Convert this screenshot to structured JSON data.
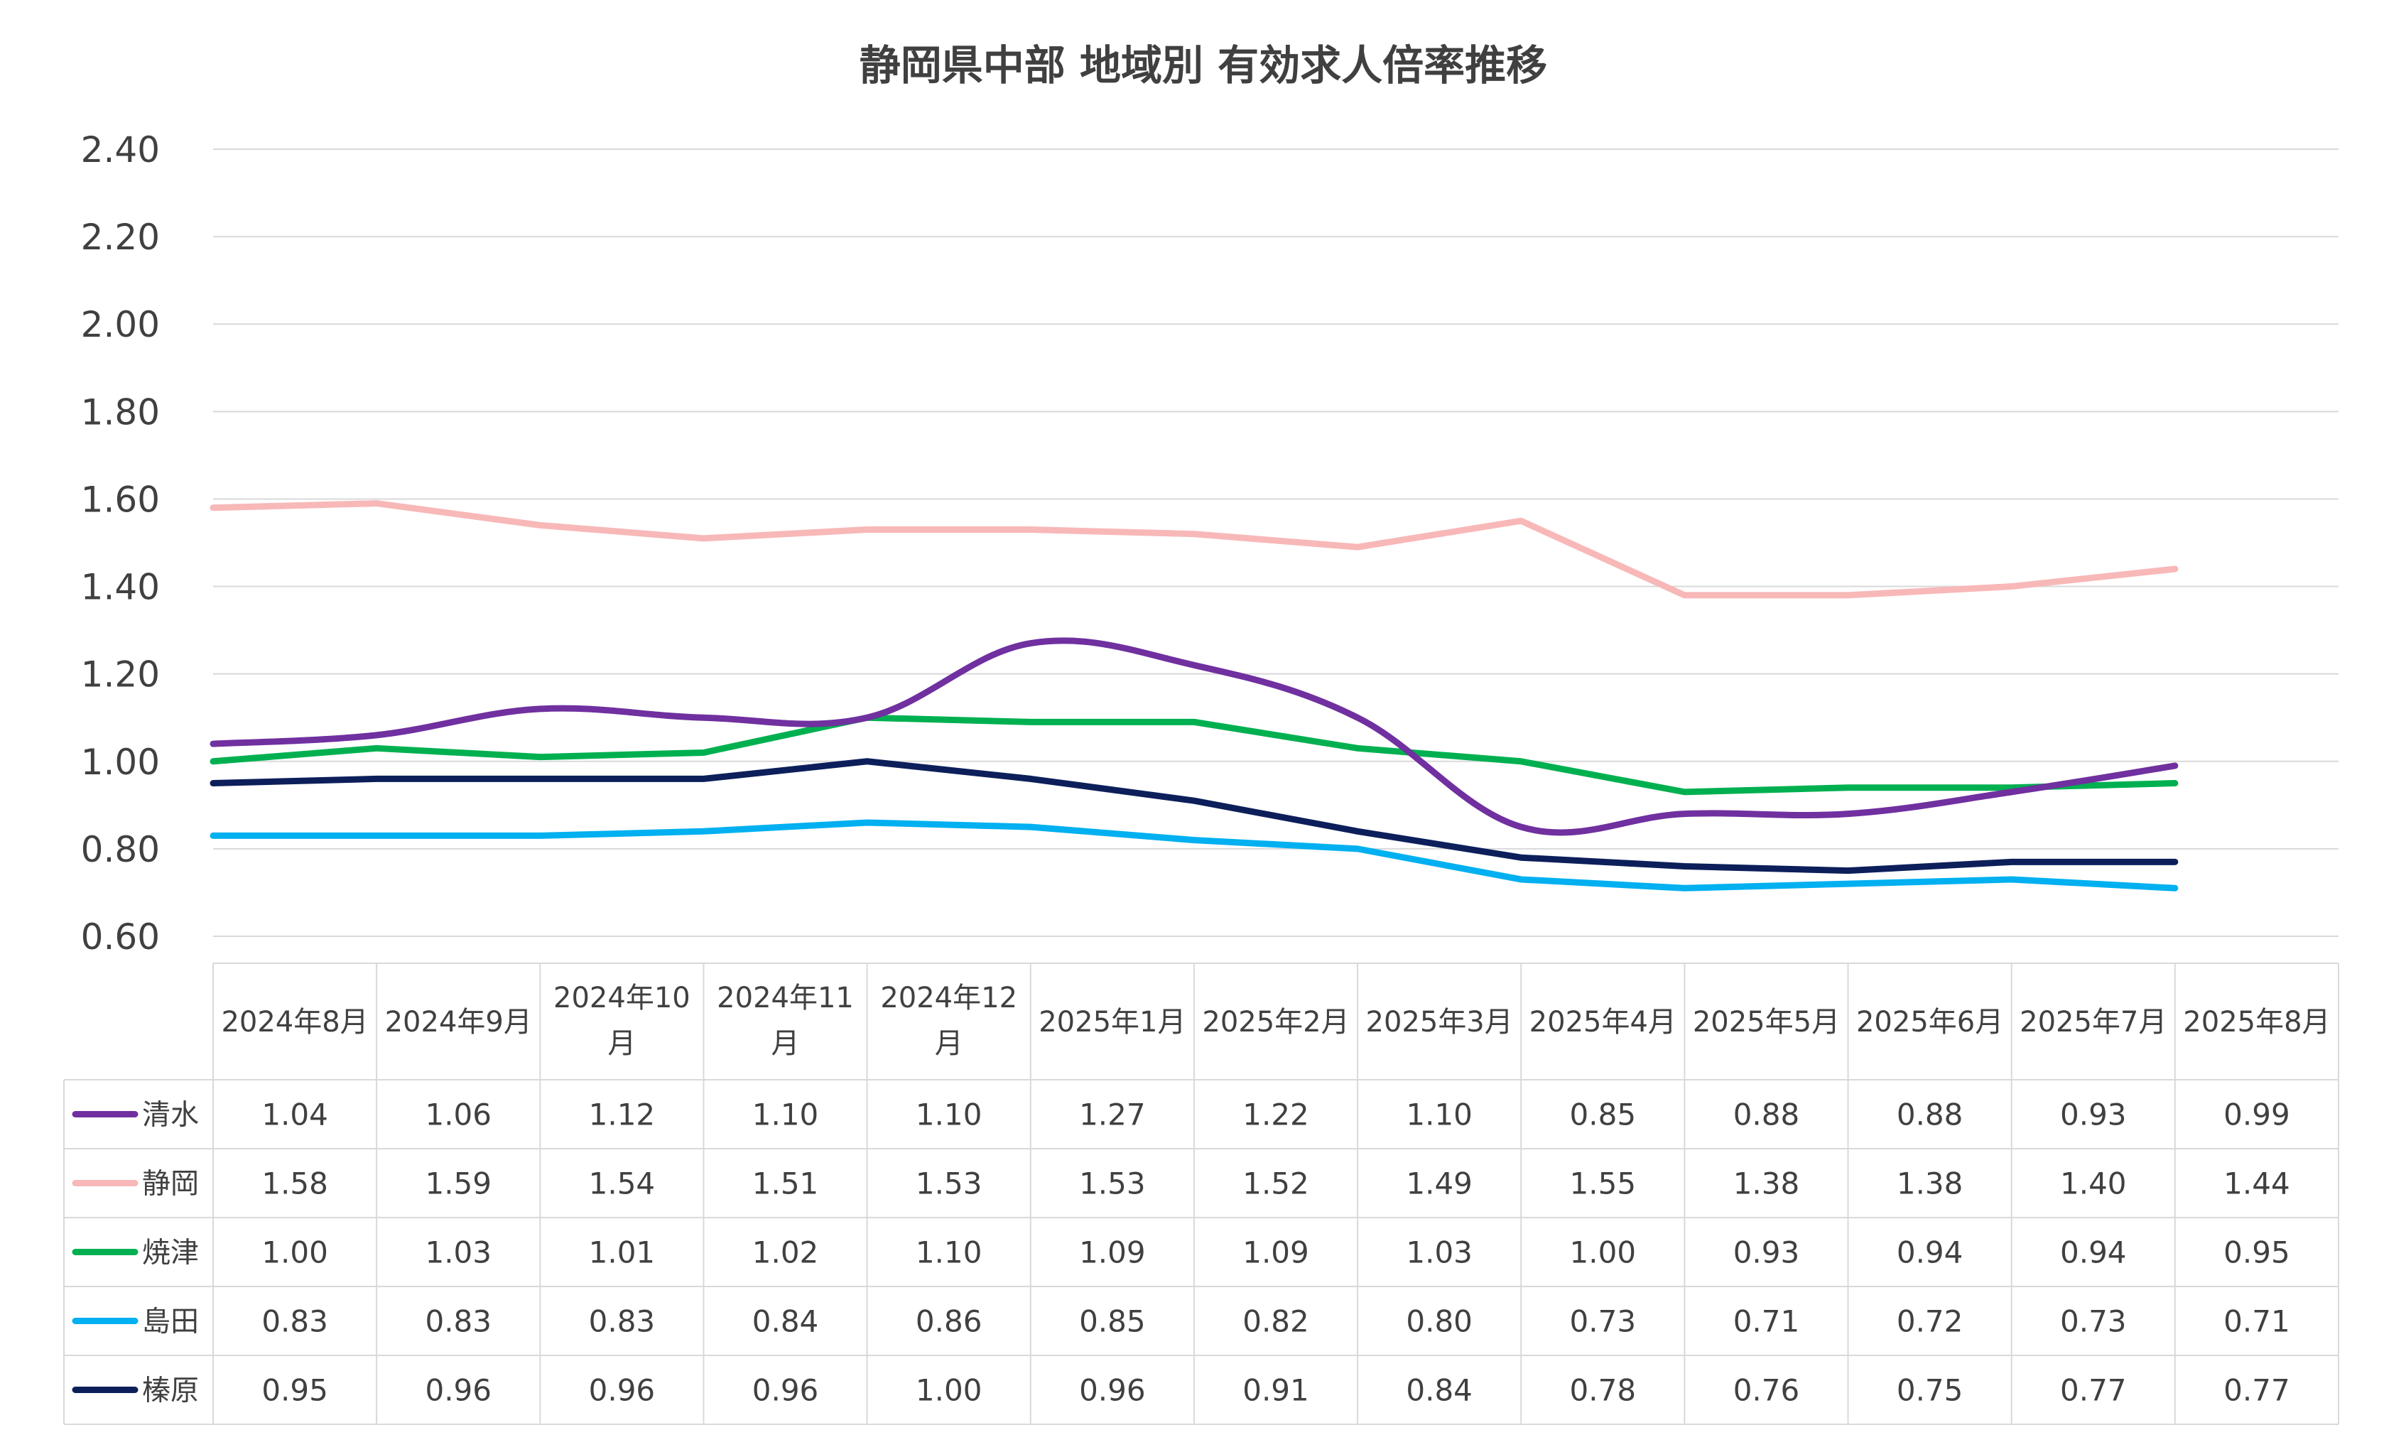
{
  "chart_data": {
    "type": "line",
    "title": "静岡県中部 地域別 有効求人倍率推移",
    "xlabel": "",
    "ylabel": "",
    "ylim": [
      0.6,
      2.4
    ],
    "yticks": [
      "2.40",
      "2.20",
      "2.00",
      "1.80",
      "1.60",
      "1.40",
      "1.20",
      "1.00",
      "0.80",
      "0.60"
    ],
    "grid": true,
    "legend": "data-table-below",
    "categories": [
      [
        "2024年8月"
      ],
      [
        "2024年9月"
      ],
      [
        "2024年10",
        "月"
      ],
      [
        "2024年11",
        "月"
      ],
      [
        "2024年12",
        "月"
      ],
      [
        "2025年1月"
      ],
      [
        "2025年2月"
      ],
      [
        "2025年3月"
      ],
      [
        "2025年4月"
      ],
      [
        "2025年5月"
      ],
      [
        "2025年6月"
      ],
      [
        "2025年7月"
      ],
      [
        "2025年8月"
      ]
    ],
    "series": [
      {
        "name": "清水",
        "color": "#7030a0",
        "values": [
          1.04,
          1.06,
          1.12,
          1.1,
          1.1,
          1.27,
          1.22,
          1.1,
          0.85,
          0.88,
          0.88,
          0.93,
          0.99
        ],
        "labels": [
          "1.04",
          "1.06",
          "1.12",
          "1.10",
          "1.10",
          "1.27",
          "1.22",
          "1.10",
          "0.85",
          "0.88",
          "0.88",
          "0.93",
          "0.99"
        ]
      },
      {
        "name": "静岡",
        "color": "#f8b8b8",
        "values": [
          1.58,
          1.59,
          1.54,
          1.51,
          1.53,
          1.53,
          1.52,
          1.49,
          1.55,
          1.38,
          1.38,
          1.4,
          1.44
        ],
        "labels": [
          "1.58",
          "1.59",
          "1.54",
          "1.51",
          "1.53",
          "1.53",
          "1.52",
          "1.49",
          "1.55",
          "1.38",
          "1.38",
          "1.40",
          "1.44"
        ]
      },
      {
        "name": "焼津",
        "color": "#00b050",
        "values": [
          1.0,
          1.03,
          1.01,
          1.02,
          1.1,
          1.09,
          1.09,
          1.03,
          1.0,
          0.93,
          0.94,
          0.94,
          0.95
        ],
        "labels": [
          "1.00",
          "1.03",
          "1.01",
          "1.02",
          "1.10",
          "1.09",
          "1.09",
          "1.03",
          "1.00",
          "0.93",
          "0.94",
          "0.94",
          "0.95"
        ]
      },
      {
        "name": "島田",
        "color": "#00b0f0",
        "values": [
          0.83,
          0.83,
          0.83,
          0.84,
          0.86,
          0.85,
          0.82,
          0.8,
          0.73,
          0.71,
          0.72,
          0.73,
          0.71
        ],
        "labels": [
          "0.83",
          "0.83",
          "0.83",
          "0.84",
          "0.86",
          "0.85",
          "0.82",
          "0.80",
          "0.73",
          "0.71",
          "0.72",
          "0.73",
          "0.71"
        ]
      },
      {
        "name": "榛原",
        "color": "#0c1f5a",
        "values": [
          0.95,
          0.96,
          0.96,
          0.96,
          1.0,
          0.96,
          0.91,
          0.84,
          0.78,
          0.76,
          0.75,
          0.77,
          0.77
        ],
        "labels": [
          "0.95",
          "0.96",
          "0.96",
          "0.96",
          "1.00",
          "0.96",
          "0.91",
          "0.84",
          "0.78",
          "0.76",
          "0.75",
          "0.77",
          "0.77"
        ]
      }
    ]
  }
}
